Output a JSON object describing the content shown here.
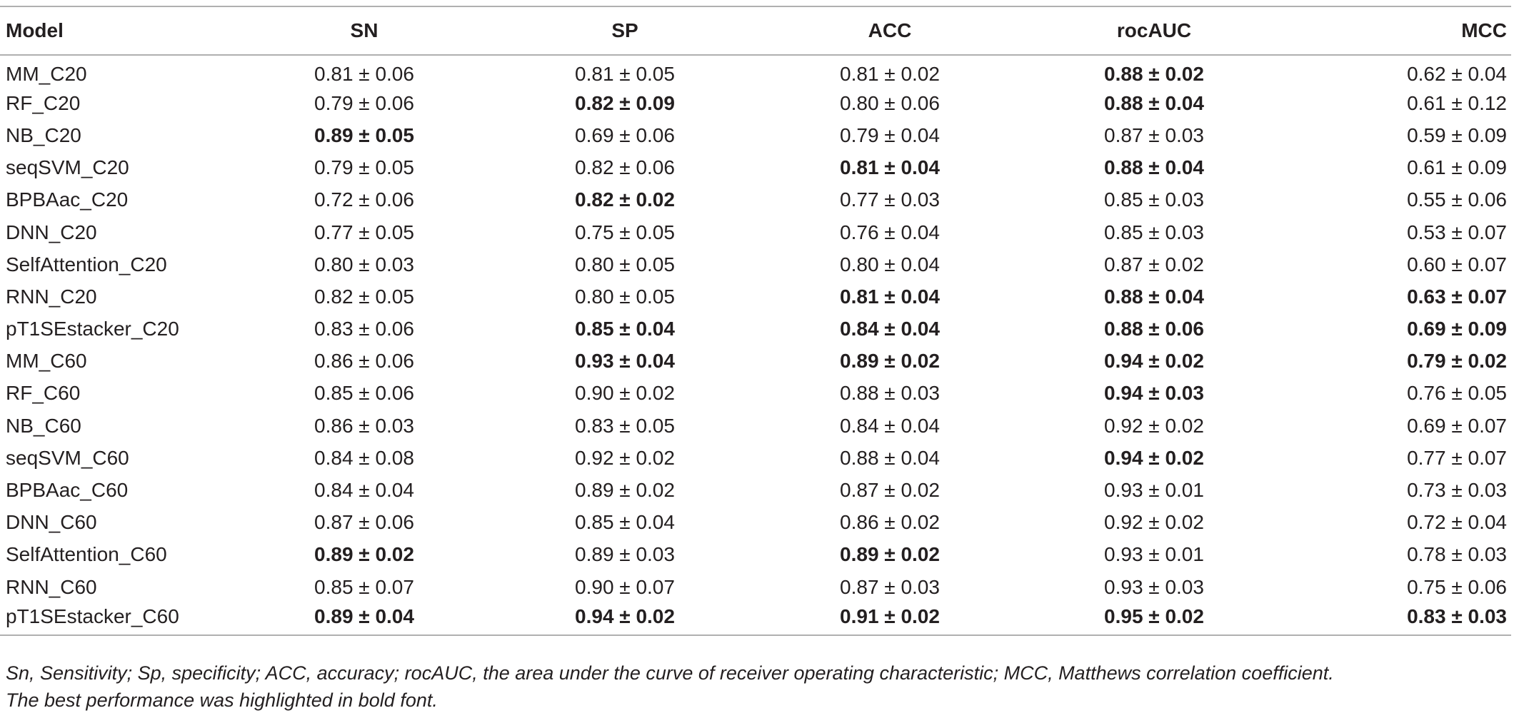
{
  "table": {
    "headers": [
      "Model",
      "SN",
      "SP",
      "ACC",
      "rocAUC",
      "MCC"
    ],
    "rows": [
      {
        "model": "MM_C20",
        "cells": [
          {
            "v": "0.81 ± 0.06",
            "b": false
          },
          {
            "v": "0.81 ± 0.05",
            "b": false
          },
          {
            "v": "0.81 ± 0.02",
            "b": false
          },
          {
            "v": "0.88 ± 0.02",
            "b": true
          },
          {
            "v": "0.62 ± 0.04",
            "b": false
          }
        ]
      },
      {
        "model": "RF_C20",
        "cells": [
          {
            "v": "0.79 ± 0.06",
            "b": false
          },
          {
            "v": "0.82 ± 0.09",
            "b": true
          },
          {
            "v": "0.80 ± 0.06",
            "b": false
          },
          {
            "v": "0.88 ± 0.04",
            "b": true
          },
          {
            "v": "0.61 ± 0.12",
            "b": false
          }
        ]
      },
      {
        "model": "NB_C20",
        "cells": [
          {
            "v": "0.89 ± 0.05",
            "b": true
          },
          {
            "v": "0.69 ± 0.06",
            "b": false
          },
          {
            "v": "0.79 ± 0.04",
            "b": false
          },
          {
            "v": "0.87 ± 0.03",
            "b": false
          },
          {
            "v": "0.59 ± 0.09",
            "b": false
          }
        ]
      },
      {
        "model": "seqSVM_C20",
        "cells": [
          {
            "v": "0.79 ± 0.05",
            "b": false
          },
          {
            "v": "0.82 ± 0.06",
            "b": false
          },
          {
            "v": "0.81 ± 0.04",
            "b": true
          },
          {
            "v": "0.88 ± 0.04",
            "b": true
          },
          {
            "v": "0.61 ± 0.09",
            "b": false
          }
        ]
      },
      {
        "model": "BPBAac_C20",
        "cells": [
          {
            "v": "0.72 ± 0.06",
            "b": false
          },
          {
            "v": "0.82 ± 0.02",
            "b": true
          },
          {
            "v": "0.77 ± 0.03",
            "b": false
          },
          {
            "v": "0.85 ± 0.03",
            "b": false
          },
          {
            "v": "0.55 ± 0.06",
            "b": false
          }
        ]
      },
      {
        "model": "DNN_C20",
        "cells": [
          {
            "v": "0.77 ± 0.05",
            "b": false
          },
          {
            "v": "0.75 ± 0.05",
            "b": false
          },
          {
            "v": "0.76 ± 0.04",
            "b": false
          },
          {
            "v": "0.85 ± 0.03",
            "b": false
          },
          {
            "v": "0.53 ± 0.07",
            "b": false
          }
        ]
      },
      {
        "model": "SelfAttention_C20",
        "cells": [
          {
            "v": "0.80 ± 0.03",
            "b": false
          },
          {
            "v": "0.80 ± 0.05",
            "b": false
          },
          {
            "v": "0.80 ± 0.04",
            "b": false
          },
          {
            "v": "0.87 ± 0.02",
            "b": false
          },
          {
            "v": "0.60 ± 0.07",
            "b": false
          }
        ]
      },
      {
        "model": "RNN_C20",
        "cells": [
          {
            "v": "0.82 ± 0.05",
            "b": false
          },
          {
            "v": "0.80 ± 0.05",
            "b": false
          },
          {
            "v": "0.81 ± 0.04",
            "b": true
          },
          {
            "v": "0.88 ± 0.04",
            "b": true
          },
          {
            "v": "0.63 ± 0.07",
            "b": true
          }
        ]
      },
      {
        "model": "pT1SEstacker_C20",
        "cells": [
          {
            "v": "0.83 ± 0.06",
            "b": false
          },
          {
            "v": "0.85 ± 0.04",
            "b": true
          },
          {
            "v": "0.84 ± 0.04",
            "b": true
          },
          {
            "v": "0.88 ± 0.06",
            "b": true
          },
          {
            "v": "0.69 ± 0.09",
            "b": true
          }
        ]
      },
      {
        "model": "MM_C60",
        "cells": [
          {
            "v": "0.86 ± 0.06",
            "b": false
          },
          {
            "v": "0.93 ± 0.04",
            "b": true
          },
          {
            "v": "0.89 ± 0.02",
            "b": true
          },
          {
            "v": "0.94 ± 0.02",
            "b": true
          },
          {
            "v": "0.79 ± 0.02",
            "b": true
          }
        ]
      },
      {
        "model": "RF_C60",
        "cells": [
          {
            "v": "0.85 ± 0.06",
            "b": false
          },
          {
            "v": "0.90 ± 0.02",
            "b": false
          },
          {
            "v": "0.88 ± 0.03",
            "b": false
          },
          {
            "v": "0.94 ± 0.03",
            "b": true
          },
          {
            "v": "0.76 ± 0.05",
            "b": false
          }
        ]
      },
      {
        "model": "NB_C60",
        "cells": [
          {
            "v": "0.86 ± 0.03",
            "b": false
          },
          {
            "v": "0.83 ± 0.05",
            "b": false
          },
          {
            "v": "0.84 ± 0.04",
            "b": false
          },
          {
            "v": "0.92 ± 0.02",
            "b": false
          },
          {
            "v": "0.69 ± 0.07",
            "b": false
          }
        ]
      },
      {
        "model": "seqSVM_C60",
        "cells": [
          {
            "v": "0.84 ± 0.08",
            "b": false
          },
          {
            "v": "0.92 ± 0.02",
            "b": false
          },
          {
            "v": "0.88 ± 0.04",
            "b": false
          },
          {
            "v": "0.94 ± 0.02",
            "b": true
          },
          {
            "v": "0.77 ± 0.07",
            "b": false
          }
        ]
      },
      {
        "model": "BPBAac_C60",
        "cells": [
          {
            "v": "0.84 ± 0.04",
            "b": false
          },
          {
            "v": "0.89 ± 0.02",
            "b": false
          },
          {
            "v": "0.87 ± 0.02",
            "b": false
          },
          {
            "v": "0.93 ± 0.01",
            "b": false
          },
          {
            "v": "0.73 ± 0.03",
            "b": false
          }
        ]
      },
      {
        "model": "DNN_C60",
        "cells": [
          {
            "v": "0.87 ± 0.06",
            "b": false
          },
          {
            "v": "0.85 ± 0.04",
            "b": false
          },
          {
            "v": "0.86 ± 0.02",
            "b": false
          },
          {
            "v": "0.92 ± 0.02",
            "b": false
          },
          {
            "v": "0.72 ± 0.04",
            "b": false
          }
        ]
      },
      {
        "model": "SelfAttention_C60",
        "cells": [
          {
            "v": "0.89 ± 0.02",
            "b": true
          },
          {
            "v": "0.89 ± 0.03",
            "b": false
          },
          {
            "v": "0.89 ± 0.02",
            "b": true
          },
          {
            "v": "0.93 ± 0.01",
            "b": false
          },
          {
            "v": "0.78 ± 0.03",
            "b": false
          }
        ]
      },
      {
        "model": "RNN_C60",
        "cells": [
          {
            "v": "0.85 ± 0.07",
            "b": false
          },
          {
            "v": "0.90 ± 0.07",
            "b": false
          },
          {
            "v": "0.87 ± 0.03",
            "b": false
          },
          {
            "v": "0.93 ± 0.03",
            "b": false
          },
          {
            "v": "0.75 ± 0.06",
            "b": false
          }
        ]
      },
      {
        "model": "pT1SEstacker_C60",
        "cells": [
          {
            "v": "0.89 ± 0.04",
            "b": true
          },
          {
            "v": "0.94 ± 0.02",
            "b": true
          },
          {
            "v": "0.91 ± 0.02",
            "b": true
          },
          {
            "v": "0.95 ± 0.02",
            "b": true
          },
          {
            "v": "0.83 ± 0.03",
            "b": true
          }
        ]
      }
    ]
  },
  "footnotes": [
    "Sn, Sensitivity; Sp, specificity; ACC, accuracy; rocAUC, the area under the curve of receiver operating characteristic; MCC, Matthews correlation coefficient.",
    "The best performance was highlighted in bold font."
  ]
}
